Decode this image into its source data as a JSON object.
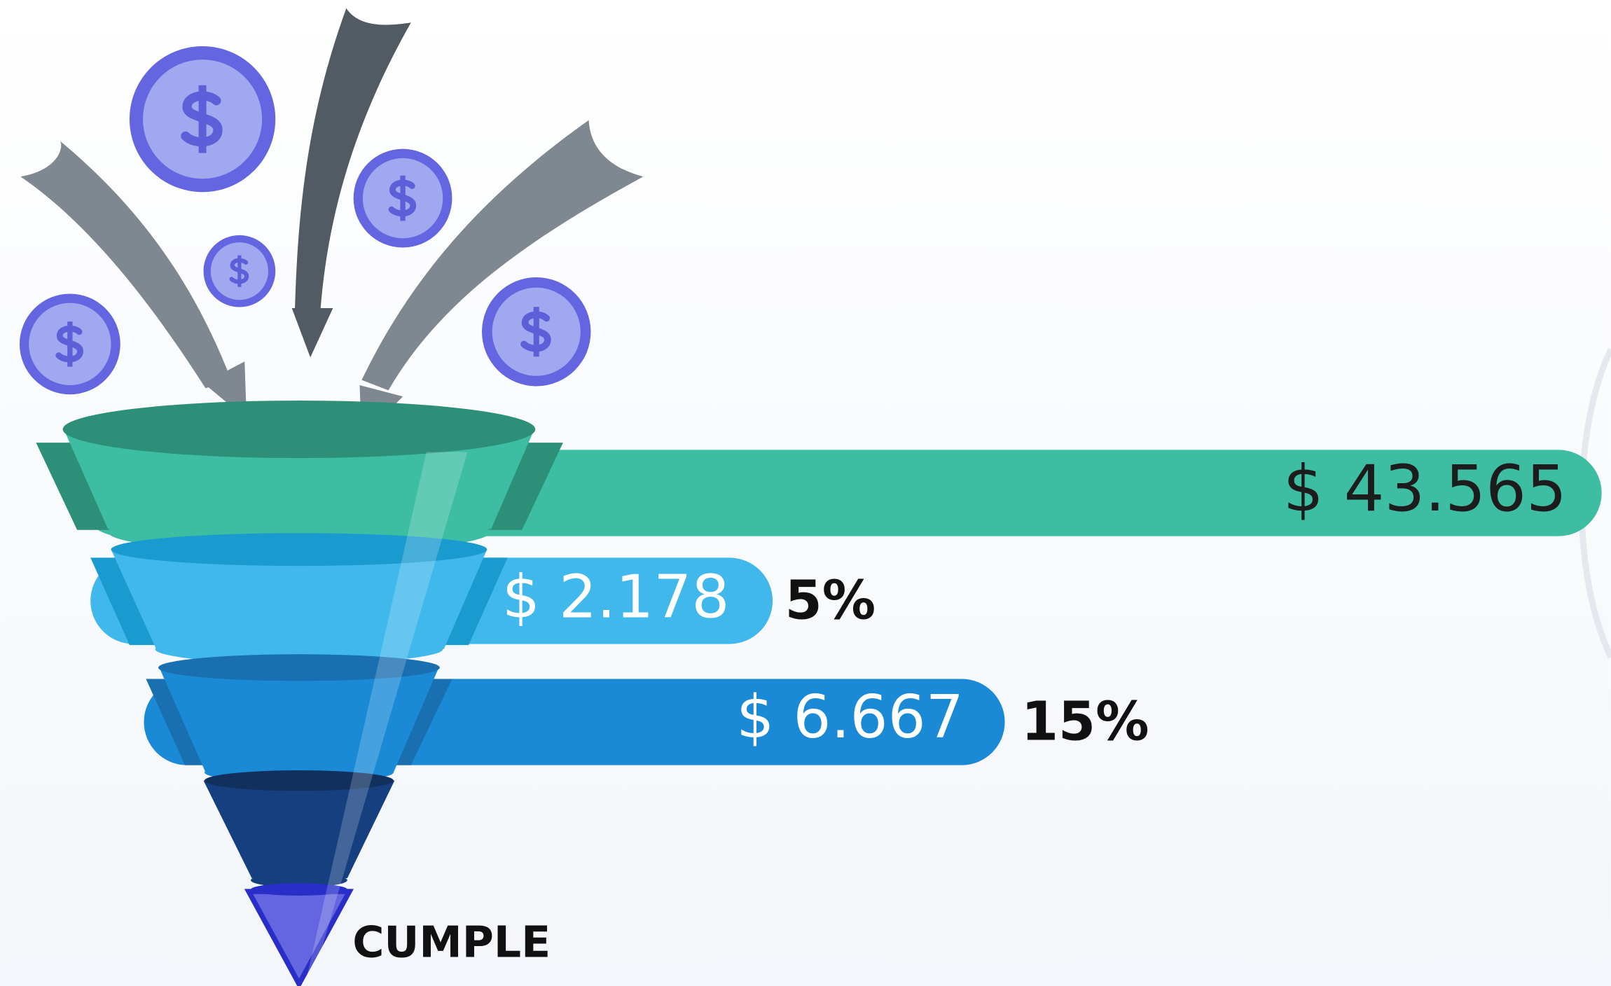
{
  "stages": [
    {
      "amount": "$ 43.565"
    },
    {
      "amount": "$ 2.178",
      "percent": "5%"
    },
    {
      "amount": "$ 6.667",
      "percent": "15%"
    }
  ],
  "footer": "CUMPLE"
}
